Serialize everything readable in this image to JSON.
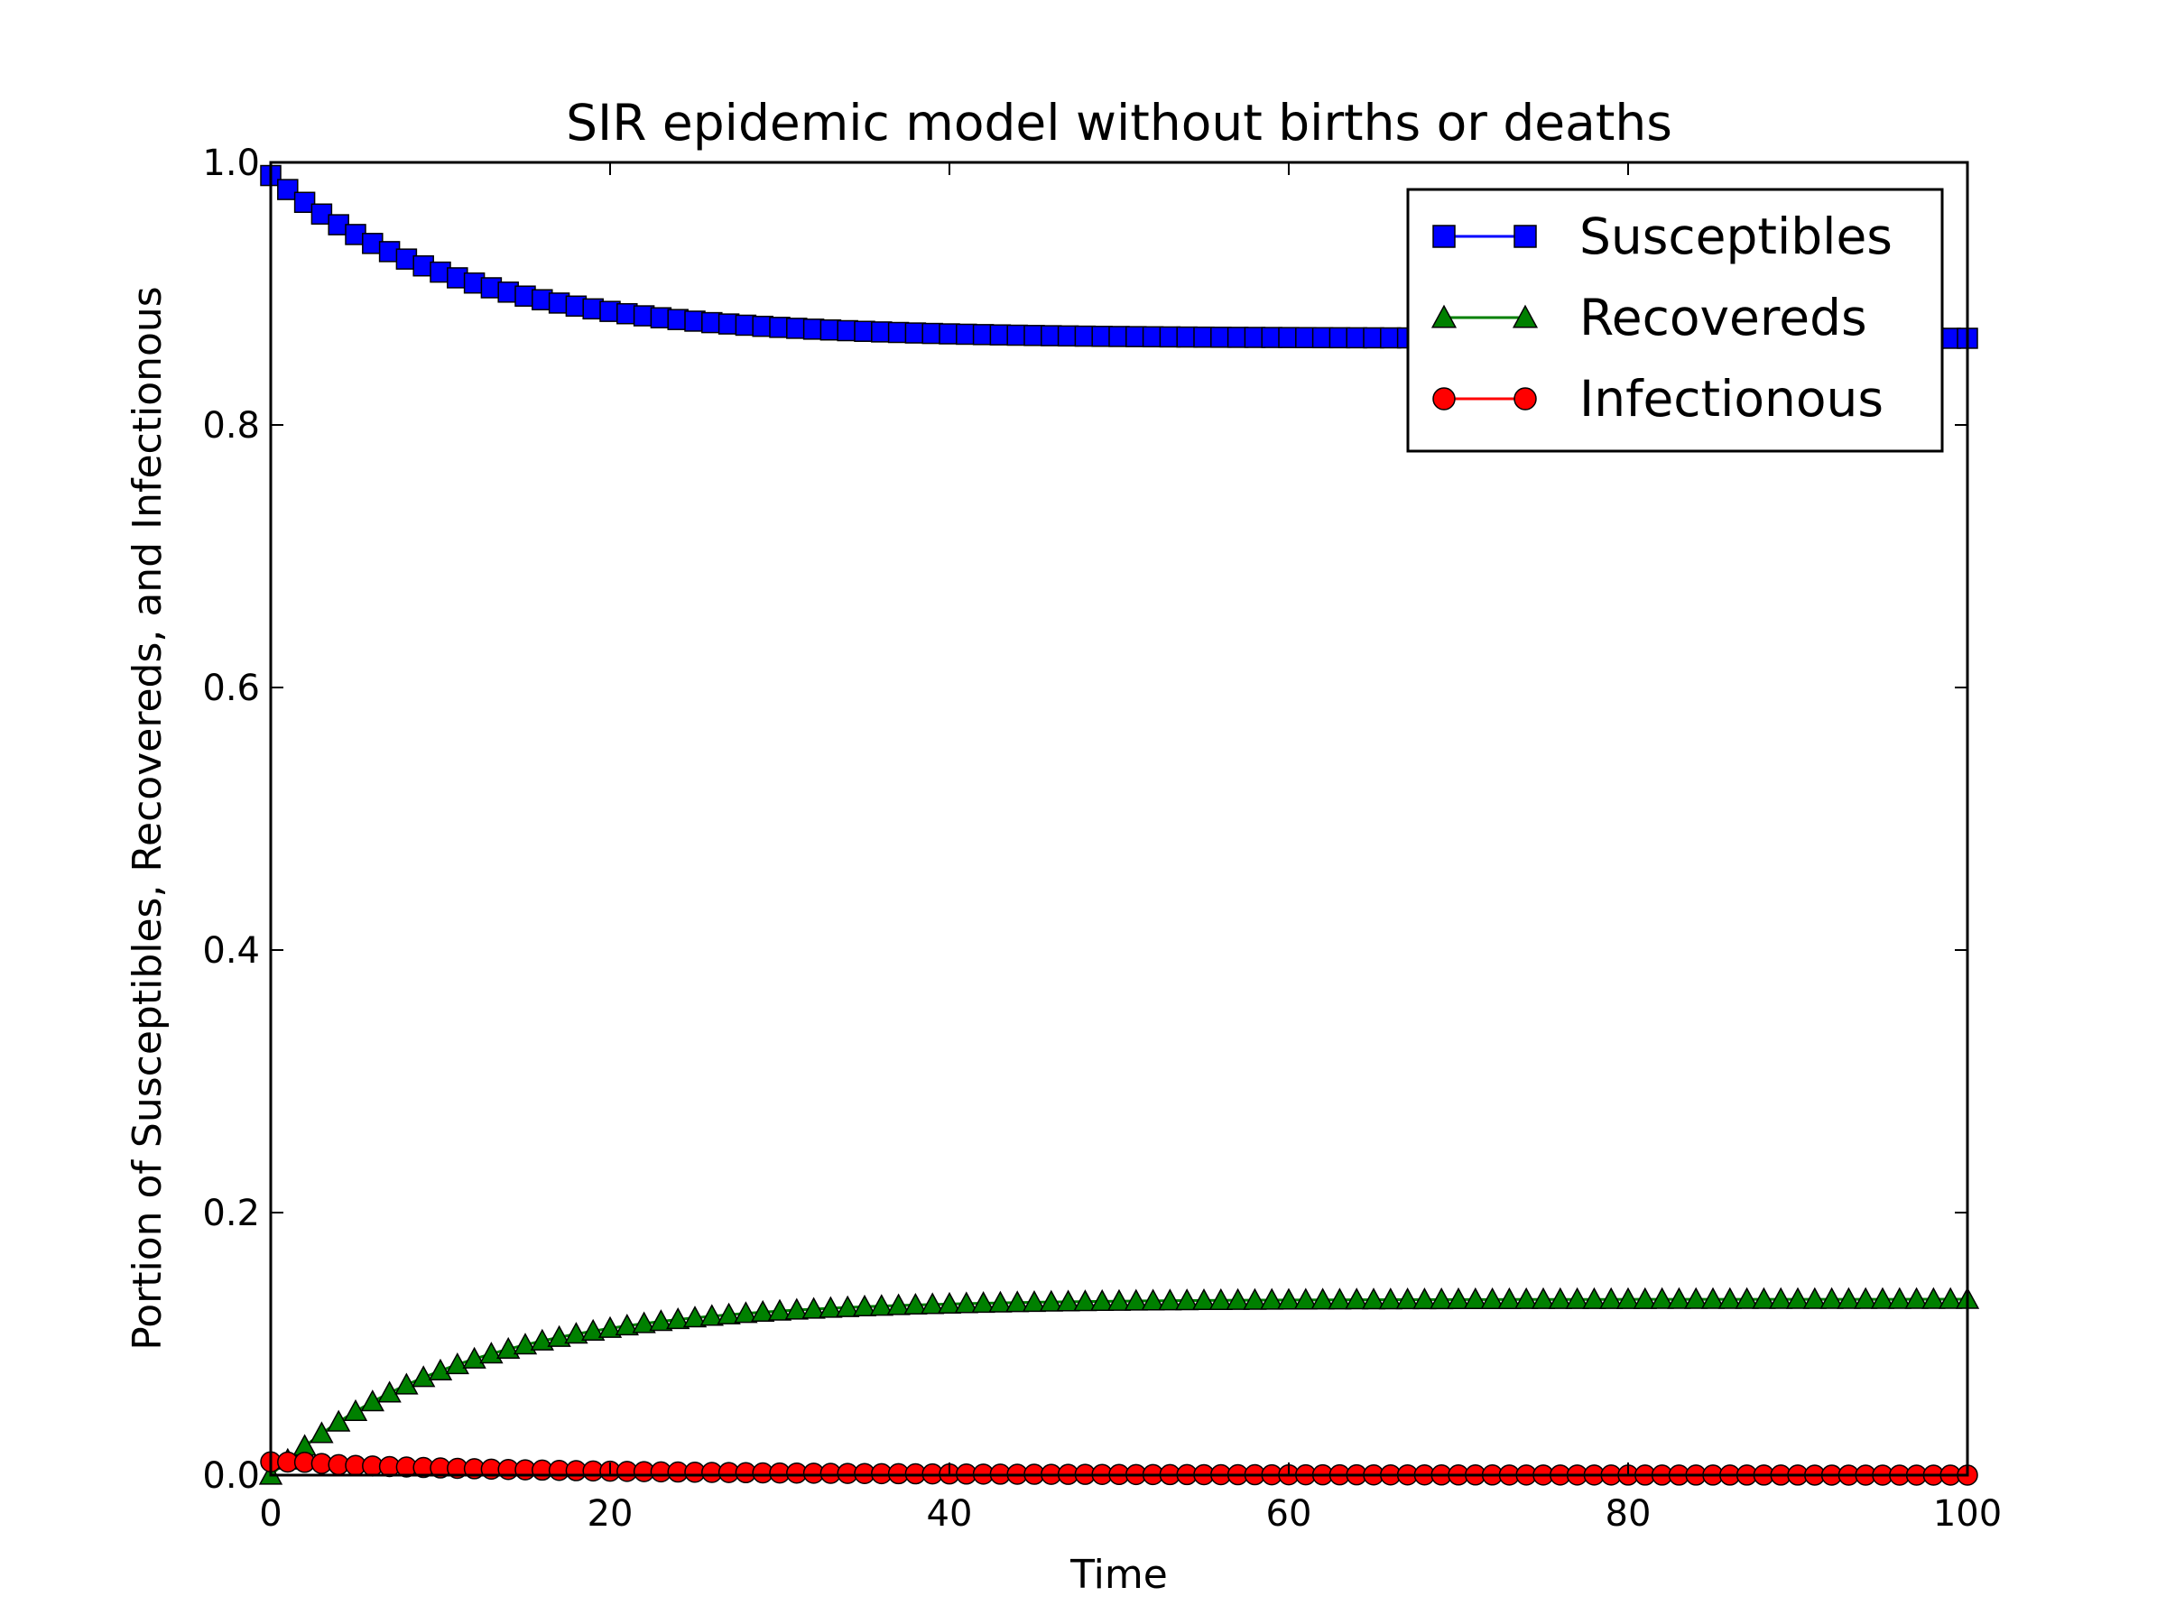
{
  "chart_data": {
    "type": "line",
    "title": "SIR epidemic model without births or deaths",
    "xlabel": "Time",
    "ylabel": "Portion of Susceptibles, Recovereds, and Infectionous",
    "xlim": [
      0,
      100
    ],
    "ylim": [
      0,
      1.0
    ],
    "xticks": [
      0,
      20,
      40,
      60,
      80,
      100
    ],
    "yticks": [
      0.0,
      0.2,
      0.4,
      0.6,
      0.8,
      1.0
    ],
    "xtick_labels": [
      "0",
      "20",
      "40",
      "60",
      "80",
      "100"
    ],
    "ytick_labels": [
      "0.0",
      "0.2",
      "0.4",
      "0.6",
      "0.8",
      "1.0"
    ],
    "grid": false,
    "legend_position": "top-right",
    "x": {
      "start": 0,
      "end": 100,
      "step": 1
    },
    "series": [
      {
        "name": "Susceptibles",
        "color": "#0000ff",
        "marker": "square",
        "model": "exponential_decay",
        "initial": 0.99,
        "final": 0.866,
        "rate": 0.09
      },
      {
        "name": "Recovereds",
        "color": "#008000",
        "marker": "triangle",
        "model": "exponential_rise",
        "initial": 0.0,
        "final": 0.134,
        "rate": 0.09
      },
      {
        "name": "Infectionous",
        "color": "#ff0000",
        "marker": "circle",
        "model": "pulse",
        "initial": 0.01,
        "peak": 0.011,
        "decay": 0.06
      }
    ]
  }
}
